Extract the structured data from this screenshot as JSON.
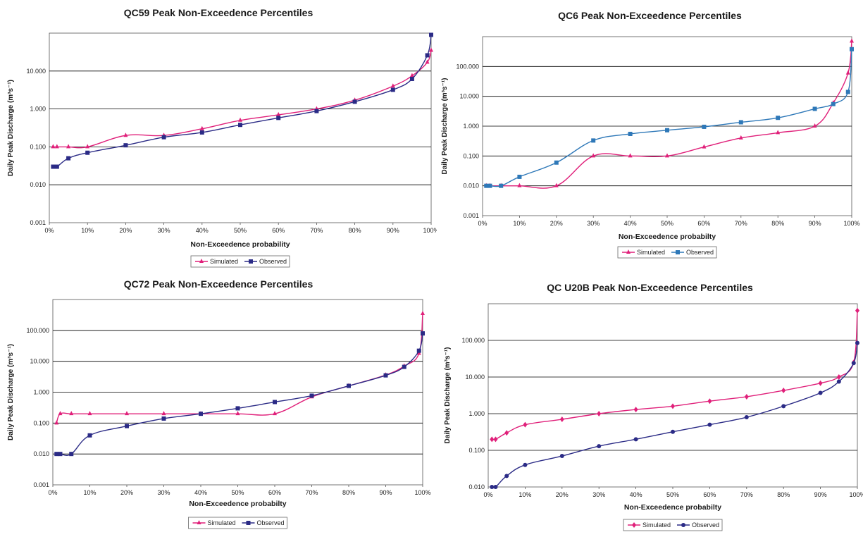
{
  "colors": {
    "simulated": "#e0207a",
    "observed": "#2b2b86",
    "observed_alt": "#2e78b8",
    "grid": "#000000"
  },
  "chart_data": [
    {
      "type": "line",
      "title": "QC59 Peak Non-Exceedence Percentiles",
      "xlabel": "Non-Exceedence probability",
      "ylabel": "Daily Peak Discharge (m³s⁻¹)",
      "yscale": "log",
      "ylim": [
        0.001,
        100
      ],
      "xlim": [
        0,
        100
      ],
      "yticks": [
        "0.001",
        "0.010",
        "0.100",
        "1.000",
        "10.000"
      ],
      "xticks": [
        "0%",
        "10%",
        "20%",
        "30%",
        "40%",
        "50%",
        "60%",
        "70%",
        "80%",
        "90%",
        "100%"
      ],
      "legend": [
        "Simulated",
        "Observed"
      ],
      "legend_position": "bottom",
      "series": [
        {
          "name": "Simulated",
          "marker": "triangle",
          "x": [
            1,
            2,
            5,
            10,
            20,
            30,
            40,
            50,
            60,
            70,
            80,
            90,
            95,
            99,
            100
          ],
          "y": [
            0.1,
            0.1,
            0.1,
            0.1,
            0.2,
            0.2,
            0.3,
            0.5,
            0.7,
            1.0,
            1.7,
            4.0,
            7.5,
            17,
            35
          ]
        },
        {
          "name": "Observed",
          "marker": "square",
          "x": [
            1,
            2,
            5,
            10,
            20,
            30,
            40,
            50,
            60,
            70,
            80,
            90,
            95,
            99,
            100
          ],
          "y": [
            0.03,
            0.03,
            0.05,
            0.07,
            0.11,
            0.18,
            0.24,
            0.38,
            0.58,
            0.88,
            1.55,
            3.2,
            6.2,
            26,
            90
          ]
        }
      ]
    },
    {
      "type": "line",
      "title": "QC6 Peak Non-Exceedence Percentiles",
      "xlabel": "Non-Exceedence probabilty",
      "ylabel": "Daily Peak Discharge (m³s⁻¹)",
      "yscale": "log",
      "ylim": [
        0.001,
        1000
      ],
      "xlim": [
        0,
        100
      ],
      "yticks": [
        "0.001",
        "0.010",
        "0.100",
        "1.000",
        "10.000",
        "100.000"
      ],
      "xticks": [
        "0%",
        "10%",
        "20%",
        "30%",
        "40%",
        "50%",
        "60%",
        "70%",
        "80%",
        "90%",
        "100%"
      ],
      "legend": [
        "Simulated",
        "Observed"
      ],
      "legend_position": "bottom",
      "series": [
        {
          "name": "Simulated",
          "marker": "triangle",
          "x": [
            1,
            2,
            5,
            10,
            20,
            30,
            40,
            50,
            60,
            70,
            80,
            90,
            95,
            99,
            100
          ],
          "y": [
            0.01,
            0.01,
            0.01,
            0.01,
            0.01,
            0.1,
            0.1,
            0.1,
            0.2,
            0.4,
            0.6,
            1.0,
            6,
            60,
            700
          ]
        },
        {
          "name": "Observed",
          "marker": "square",
          "x": [
            1,
            2,
            5,
            10,
            20,
            30,
            40,
            50,
            60,
            70,
            80,
            90,
            95,
            99,
            100
          ],
          "y": [
            0.01,
            0.01,
            0.01,
            0.02,
            0.06,
            0.33,
            0.55,
            0.73,
            0.95,
            1.35,
            1.9,
            3.8,
            5.5,
            14,
            380
          ]
        }
      ]
    },
    {
      "type": "line",
      "title": "QC72 Peak Non-Exceedence Percentiles",
      "xlabel": "Non-Exceedence probabilty",
      "ylabel": "Daily Peak Discharge (m³s⁻¹)",
      "yscale": "log",
      "ylim": [
        0.001,
        1000
      ],
      "xlim": [
        0,
        100
      ],
      "yticks": [
        "0.001",
        "0.010",
        "0.100",
        "1.000",
        "10.000",
        "100.000"
      ],
      "xticks": [
        "0%",
        "10%",
        "20%",
        "30%",
        "40%",
        "50%",
        "60%",
        "70%",
        "80%",
        "90%",
        "100%"
      ],
      "legend": [
        "Simulated",
        "Observed"
      ],
      "legend_position": "bottom",
      "series": [
        {
          "name": "Simulated",
          "marker": "triangle",
          "x": [
            1,
            2,
            5,
            10,
            20,
            30,
            40,
            50,
            60,
            70,
            80,
            90,
            95,
            99,
            100
          ],
          "y": [
            0.1,
            0.2,
            0.2,
            0.2,
            0.2,
            0.2,
            0.2,
            0.2,
            0.2,
            0.7,
            1.6,
            3.6,
            7,
            18,
            350
          ]
        },
        {
          "name": "Observed",
          "marker": "square",
          "x": [
            1,
            2,
            5,
            10,
            20,
            30,
            40,
            50,
            60,
            70,
            80,
            90,
            95,
            99,
            100
          ],
          "y": [
            0.01,
            0.01,
            0.01,
            0.04,
            0.08,
            0.14,
            0.2,
            0.3,
            0.48,
            0.77,
            1.6,
            3.5,
            6.6,
            22,
            80
          ]
        }
      ]
    },
    {
      "type": "line",
      "title": "QC U20B Peak Non-Exceedence Percentiles",
      "xlabel": "Non-Exceedence probabilty",
      "ylabel": "Daily Peak Discharge (m³s⁻¹)",
      "yscale": "log",
      "ylim": [
        0.01,
        1000
      ],
      "xlim": [
        0,
        100
      ],
      "yticks": [
        "0.010",
        "0.100",
        "1.000",
        "10.000",
        "100.000"
      ],
      "xticks": [
        "0%",
        "10%",
        "20%",
        "30%",
        "40%",
        "50%",
        "60%",
        "70%",
        "80%",
        "90%",
        "100%"
      ],
      "legend": [
        "Simulated",
        "Observed"
      ],
      "legend_position": "bottom",
      "series": [
        {
          "name": "Simulated",
          "marker": "diamond",
          "x": [
            1,
            2,
            5,
            10,
            20,
            30,
            40,
            50,
            60,
            70,
            80,
            90,
            95,
            99,
            100
          ],
          "y": [
            0.2,
            0.2,
            0.3,
            0.5,
            0.7,
            1.0,
            1.3,
            1.6,
            2.2,
            2.9,
            4.3,
            6.8,
            10,
            25,
            650
          ]
        },
        {
          "name": "Observed",
          "marker": "circle",
          "x": [
            1,
            2,
            5,
            10,
            20,
            30,
            40,
            50,
            60,
            70,
            80,
            90,
            95,
            99,
            100
          ],
          "y": [
            0.01,
            0.01,
            0.02,
            0.04,
            0.07,
            0.13,
            0.2,
            0.32,
            0.5,
            0.8,
            1.6,
            3.7,
            7.5,
            24,
            85
          ]
        }
      ]
    }
  ]
}
